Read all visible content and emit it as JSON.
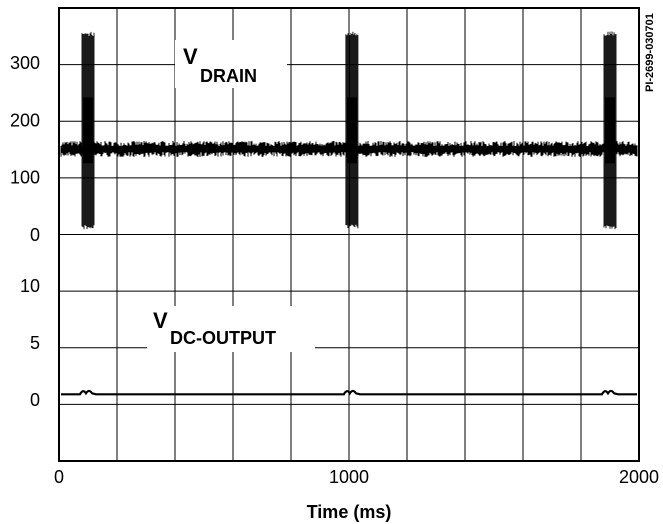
{
  "chart_data": {
    "type": "line",
    "code": "PI-2699-030701",
    "xlabel": "Time (ms)",
    "xlim": [
      0,
      2000
    ],
    "x_ticks": [
      0,
      1000,
      2000
    ],
    "upper_panel": {
      "label_main": "V",
      "label_sub": "DRAIN",
      "ylim": [
        -50,
        400
      ],
      "y_ticks": [
        300,
        200,
        100,
        0
      ],
      "baseline": 150,
      "burst_times": [
        100,
        1010,
        1900
      ],
      "burst_max": 355,
      "burst_min": 10
    },
    "lower_panel": {
      "label_main": "V",
      "label_sub": "DC-OUTPUT",
      "ylim": [
        -5,
        15
      ],
      "y_ticks": [
        10,
        5,
        0
      ],
      "baseline": 0.5,
      "bump_times": [
        100,
        1010,
        1900
      ],
      "bump_height": 0.5
    }
  }
}
